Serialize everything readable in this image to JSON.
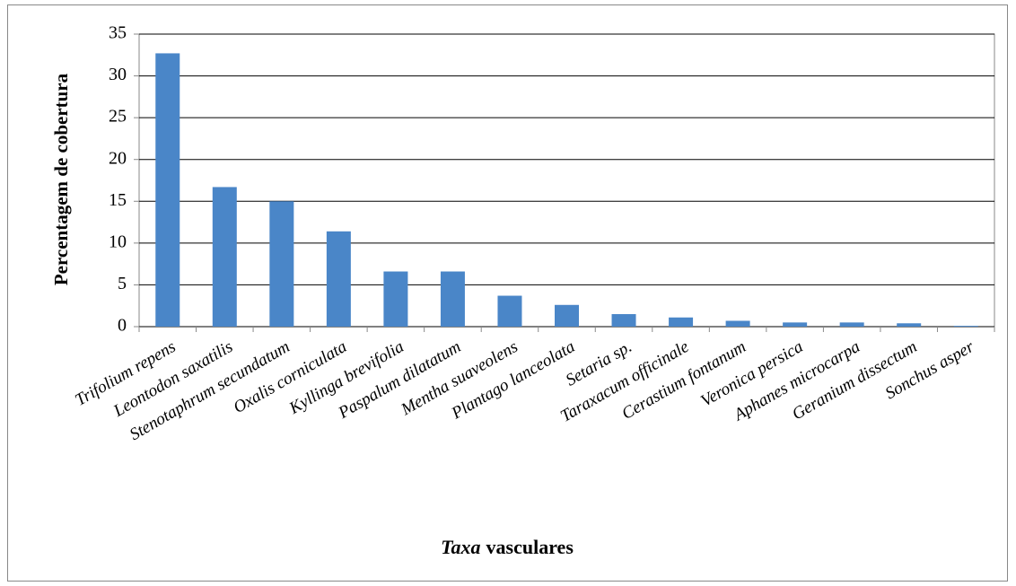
{
  "chart_data": {
    "type": "bar",
    "y_label": "Percentagem de cobertura",
    "x_label_parts": [
      {
        "text": "Taxa",
        "italic": true
      },
      {
        "text": "vasculares",
        "italic": false
      }
    ],
    "categories": [
      "Trifolium repens",
      "Leontodon saxatilis",
      "Stenotaphrum secundatum",
      "Oxalis corniculata",
      "Kyllinga brevifolia",
      "Paspalum dilatatum",
      "Mentha suaveolens",
      "Plantago lanceolata",
      "Setaria sp.",
      "Taraxacum officinale",
      "Cerastium fontanum",
      "Veronica persica",
      "Aphanes microcarpa",
      "Geranium dissectum",
      "Sonchus asper"
    ],
    "values": [
      32.7,
      16.7,
      15,
      11.4,
      6.6,
      6.6,
      3.7,
      2.6,
      1.5,
      1.1,
      0.7,
      0.5,
      0.5,
      0.4,
      0.1
    ],
    "color": "#4a86c8",
    "ylim": [
      0,
      35
    ],
    "yticks": [
      0,
      5,
      10,
      15,
      20,
      25,
      30,
      35
    ],
    "grid": true
  }
}
